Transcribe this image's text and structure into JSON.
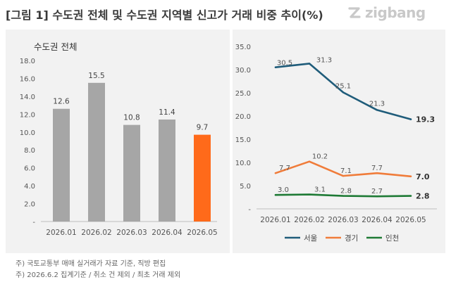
{
  "header": {
    "title": "[그림 1] 수도권 전체 및 수도권 지역별 신고가 거래 비중 추이(%)",
    "logo_text": "zigbang"
  },
  "notes": [
    "주) 국토교통부 매매 실거래가 자료 기준, 직방 편집",
    "주) 2026.6.2 집계기준 / 취소 건 제외 / 최초 거래 제외"
  ],
  "colors": {
    "bar_default": "#a6a6a6",
    "bar_highlight": "#ff6a1a",
    "seoul": "#1f5c7a",
    "gyeonggi": "#f07c3a",
    "incheon": "#1e7a35",
    "panel_bg": "#f2f2f2"
  },
  "chart_data": [
    {
      "type": "bar",
      "title": "수도권 전체",
      "categories": [
        "2026.01",
        "2026.02",
        "2026.03",
        "2026.04",
        "2026.05"
      ],
      "values": [
        12.6,
        15.5,
        10.8,
        11.4,
        9.7
      ],
      "value_labels": [
        "12.6",
        "15.5",
        "10.8",
        "11.4",
        "9.7"
      ],
      "highlight_index": 4,
      "ylim": [
        0,
        18
      ],
      "yticks": [
        0,
        2,
        4,
        6,
        8,
        10,
        12,
        14,
        16,
        18
      ],
      "ytick_labels": [
        "-",
        "2.0",
        "4.0",
        "6.0",
        "8.0",
        "10.0",
        "12.0",
        "14.0",
        "16.0",
        "18.0"
      ],
      "grid": false,
      "xlabel": "",
      "ylabel": ""
    },
    {
      "type": "line",
      "categories": [
        "2026.01",
        "2026.02",
        "2026.03",
        "2026.04",
        "2026.05"
      ],
      "ylim": [
        0,
        35
      ],
      "yticks": [
        0,
        5,
        10,
        15,
        20,
        25,
        30,
        35
      ],
      "ytick_labels": [
        "-",
        "5.0",
        "10.0",
        "15.0",
        "20.0",
        "25.0",
        "30.0",
        "35.0"
      ],
      "grid": false,
      "legend_position": "bottom",
      "xlabel": "",
      "ylabel": "",
      "series": [
        {
          "name": "서울",
          "color": "#1f5c7a",
          "values": [
            30.5,
            31.3,
            25.1,
            21.3,
            19.3
          ],
          "value_labels": [
            "30.5",
            "31.3",
            "25.1",
            "21.3",
            "19.3"
          ]
        },
        {
          "name": "경기",
          "color": "#f07c3a",
          "values": [
            7.7,
            10.2,
            7.1,
            7.7,
            7.0
          ],
          "value_labels": [
            "7.7",
            "10.2",
            "7.1",
            "7.7",
            "7.0"
          ]
        },
        {
          "name": "인천",
          "color": "#1e7a35",
          "values": [
            3.0,
            3.1,
            2.8,
            2.7,
            2.8
          ],
          "value_labels": [
            "3.0",
            "3.1",
            "2.8",
            "2.7",
            "2.8"
          ]
        }
      ]
    }
  ]
}
